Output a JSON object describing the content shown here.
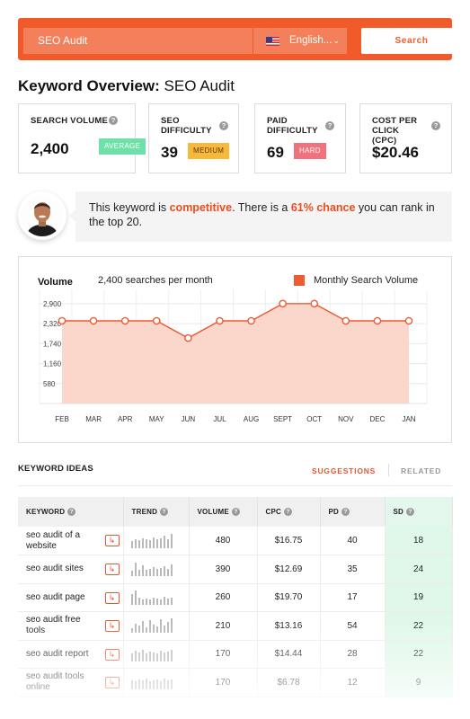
{
  "search": {
    "query": "SEO Audit",
    "language": "English...",
    "button_label": "Search"
  },
  "overview": {
    "title_prefix": "Keyword Overview:",
    "keyword": "SEO Audit"
  },
  "metrics": [
    {
      "label": "SEARCH VOLUME",
      "value": "2,400",
      "badge": "AVERAGE",
      "badge_color": "#6ee0a8"
    },
    {
      "label": "SEO DIFFICULTY",
      "value": "39",
      "badge": "MEDIUM",
      "badge_color": "#f7b93c"
    },
    {
      "label": "PAID DIFFICULTY",
      "value": "69",
      "badge": "HARD",
      "badge_color": "#f1717d"
    },
    {
      "label": "COST PER CLICK (CPC)",
      "value": "$20.46"
    }
  ],
  "message": {
    "part1": "This keyword is ",
    "highlight1": "competitive",
    "part2": ". There is a ",
    "highlight2": "61% chance",
    "part3": " you can rank in the top 20."
  },
  "chart_data": {
    "type": "area",
    "title": "Volume",
    "subtitle": "2,400 searches per month",
    "legend": "Monthly Search Volume",
    "legend_position": "top-right",
    "categories": [
      "FEB",
      "MAR",
      "APR",
      "MAY",
      "JUN",
      "JUL",
      "AUG",
      "SEPT",
      "OCT",
      "NOV",
      "DEC",
      "JAN"
    ],
    "series": [
      {
        "name": "Monthly Search Volume",
        "values": [
          2400,
          2400,
          2400,
          2400,
          1900,
          2400,
          2400,
          2900,
          2900,
          2400,
          2400,
          2400
        ]
      }
    ],
    "yticks": [
      580,
      1160,
      1740,
      2320,
      2900
    ],
    "ytick_labels": [
      "580",
      "1,160",
      "1,740",
      "2,320",
      "2,900"
    ],
    "ylim": [
      0,
      3000
    ],
    "grid": true,
    "color": "#ee5a32"
  },
  "keyword_ideas": {
    "heading": "KEYWORD IDEAS",
    "tab_suggestions": "SUGGESTIONS",
    "tab_related": "RELATED",
    "columns": [
      "KEYWORD",
      "TREND",
      "VOLUME",
      "CPC",
      "PD",
      "SD"
    ],
    "rows": [
      {
        "keyword": "seo audit of a website",
        "volume": "480",
        "cpc": "$16.75",
        "pd": "40",
        "sd": "18",
        "trend": [
          8,
          10,
          9,
          11,
          10,
          9,
          12,
          10,
          11,
          14,
          10,
          16
        ]
      },
      {
        "keyword": "seo audit sites",
        "volume": "390",
        "cpc": "$12.69",
        "pd": "35",
        "sd": "24",
        "trend": [
          6,
          15,
          7,
          12,
          7,
          8,
          10,
          8,
          9,
          11,
          8,
          13
        ]
      },
      {
        "keyword": "seo audit page",
        "volume": "260",
        "cpc": "$19.70",
        "pd": "17",
        "sd": "19",
        "trend": [
          12,
          16,
          8,
          6,
          7,
          6,
          8,
          7,
          6,
          9,
          7,
          8
        ]
      },
      {
        "keyword": "seo audit free tools",
        "volume": "210",
        "cpc": "$13.16",
        "pd": "54",
        "sd": "22",
        "trend": [
          5,
          10,
          8,
          13,
          6,
          14,
          9,
          7,
          15,
          8,
          12,
          16
        ]
      },
      {
        "keyword": "seo audit report",
        "volume": "170",
        "cpc": "$14.44",
        "pd": "28",
        "sd": "22",
        "trend": [
          9,
          12,
          10,
          13,
          9,
          11,
          10,
          9,
          12,
          10,
          11,
          13
        ]
      },
      {
        "keyword": "seo audit tools online",
        "volume": "170",
        "cpc": "$6.78",
        "pd": "12",
        "sd": "9",
        "trend": [
          10,
          9,
          11,
          10,
          12,
          9,
          10,
          11,
          9,
          12,
          10,
          11
        ]
      }
    ]
  }
}
